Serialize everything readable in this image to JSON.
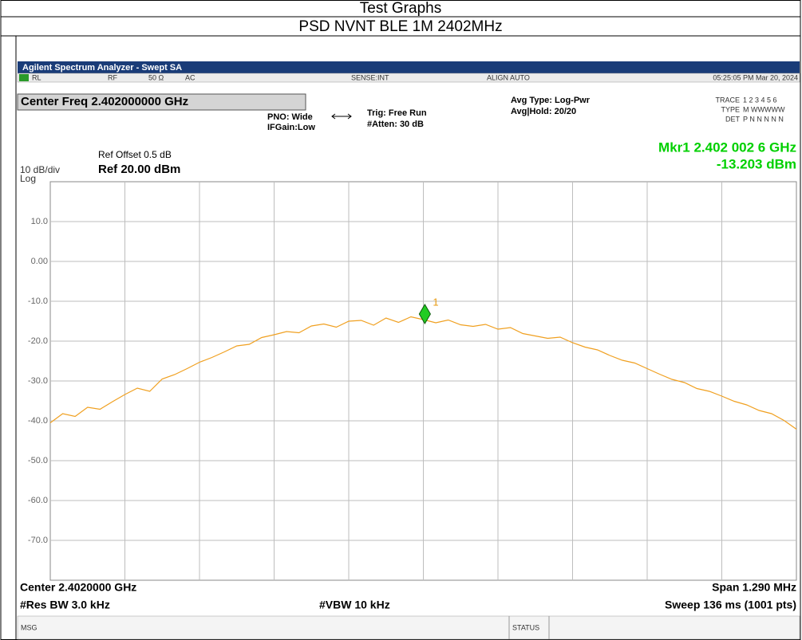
{
  "header": {
    "title": "Test Graphs",
    "subtitle": "PSD NVNT BLE 1M 2402MHz"
  },
  "analyzer": {
    "window_title": "Agilent Spectrum Analyzer - Swept SA",
    "status_bar": [
      "RL",
      "RF",
      "50 Ω",
      "AC",
      "SENSE:INT",
      "ALIGN AUTO",
      "05:25:05 PM Mar 20, 2024"
    ],
    "center_freq_box": "Center Freq 2.402000000 GHz",
    "pno": "PNO: Wide",
    "ifgain": "IFGain:Low",
    "trig": "Trig: Free Run",
    "atten": "#Atten: 30 dB",
    "avg_type": "Avg Type: Log-Pwr",
    "avg_hold": "Avg|Hold: 20/20",
    "trace_panel": {
      "labels": [
        "TRACE",
        "TYPE",
        "DET"
      ],
      "values": [
        "1 2 3 4 5 6",
        "M WWWWW",
        "P N N N N N"
      ]
    },
    "marker_readout": [
      "Mkr1 2.402 002 6 GHz",
      "-13.203 dBm"
    ],
    "ref_offset": "Ref Offset 0.5 dB",
    "ref_level": "Ref 20.00 dBm",
    "scale": "10 dB/div",
    "scale_type": "Log",
    "footer": {
      "center": "Center 2.4020000 GHz",
      "span": "Span 1.290 MHz",
      "rbw": "#Res BW 3.0 kHz",
      "vbw": "#VBW 10 kHz",
      "sweep": "Sweep  136 ms (1001 pts)"
    },
    "msg": "MSG",
    "status": "STATUS"
  },
  "chart_data": {
    "type": "line",
    "x": [
      2401.355,
      2401.3765,
      2401.398,
      2401.4195,
      2401.441,
      2401.4625,
      2401.484,
      2401.5055,
      2401.527,
      2401.5485,
      2401.57,
      2401.5915,
      2401.613,
      2401.6345,
      2401.656,
      2401.6775,
      2401.699,
      2401.7205,
      2401.742,
      2401.7635,
      2401.785,
      2401.8065,
      2401.828,
      2401.8495,
      2401.871,
      2401.8925,
      2401.914,
      2401.9355,
      2401.957,
      2401.9785,
      2402.0,
      2402.0215,
      2402.043,
      2402.0645,
      2402.086,
      2402.1075,
      2402.129,
      2402.1505,
      2402.172,
      2402.1935,
      2402.215,
      2402.2365,
      2402.258,
      2402.2795,
      2402.301,
      2402.3225,
      2402.344,
      2402.3655,
      2402.387,
      2402.4085,
      2402.43,
      2402.4515,
      2402.473,
      2402.4945,
      2402.516,
      2402.5375,
      2402.559,
      2402.5805,
      2402.602,
      2402.6235,
      2402.645
    ],
    "series": [
      {
        "color": "#f0a020",
        "values": [
          -40.5,
          -38.2,
          -38.9,
          -36.6,
          -37.1,
          -35.2,
          -33.4,
          -31.8,
          -32.6,
          -29.5,
          -28.4,
          -26.9,
          -25.3,
          -24.1,
          -22.7,
          -21.2,
          -20.8,
          -19.1,
          -18.4,
          -17.6,
          -17.9,
          -16.2,
          -15.7,
          -16.5,
          -15.0,
          -14.8,
          -16.0,
          -14.2,
          -15.3,
          -13.9,
          -14.6,
          -15.4,
          -14.7,
          -15.9,
          -16.3,
          -15.8,
          -17.0,
          -16.6,
          -18.1,
          -18.7,
          -19.3,
          -19.0,
          -20.4,
          -21.5,
          -22.2,
          -23.6,
          -24.8,
          -25.5,
          -26.9,
          -28.3,
          -29.6,
          -30.4,
          -31.9,
          -32.6,
          -33.8,
          -35.1,
          -36.0,
          -37.4,
          -38.2,
          -39.9,
          -42.1
        ]
      }
    ],
    "marker": {
      "x": 2402.0026,
      "y": -13.203,
      "label": "1",
      "color": "#22cc22"
    },
    "xlim": [
      2401.355,
      2402.645
    ],
    "ylim": [
      -80,
      20
    ],
    "yticks": [
      {
        "value": 10,
        "label": "10.0"
      },
      {
        "value": 0,
        "label": "0.00"
      },
      {
        "value": -10,
        "label": "-10.0"
      },
      {
        "value": -20,
        "label": "-20.0"
      },
      {
        "value": -30,
        "label": "-30.0"
      },
      {
        "value": -40,
        "label": "-40.0"
      },
      {
        "value": -50,
        "label": "-50.0"
      },
      {
        "value": -60,
        "label": "-60.0"
      },
      {
        "value": -70,
        "label": "-70.0"
      }
    ],
    "grid": true
  }
}
